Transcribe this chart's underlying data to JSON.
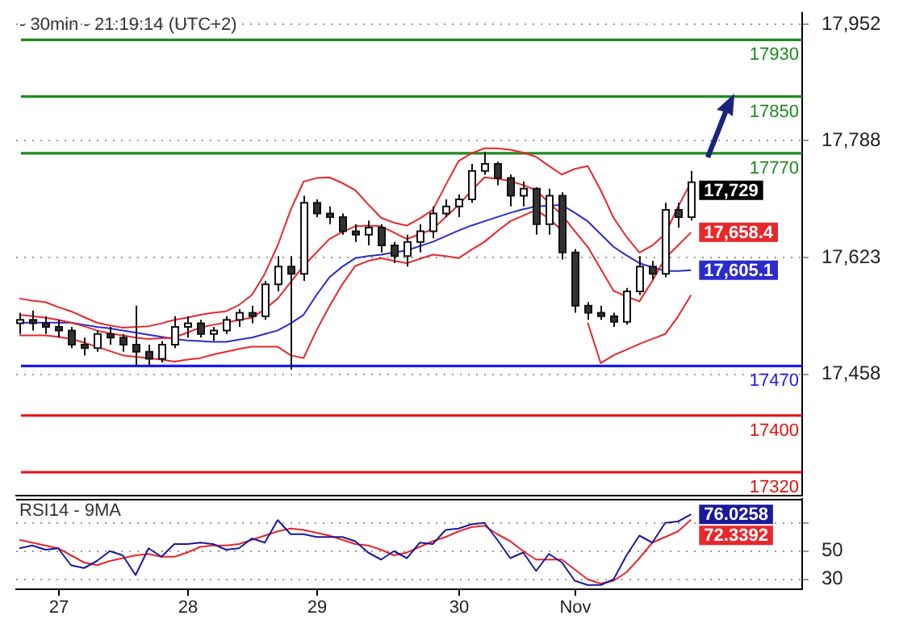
{
  "chart_data": [
    {
      "type": "candlestick",
      "title": "- 30min - 21:19:14 (UTC+2)",
      "ylim": [
        17287,
        17968
      ],
      "yticks": [
        {
          "value": 17458,
          "label": "17,458"
        },
        {
          "value": 17623,
          "label": "17,623"
        },
        {
          "value": 17788,
          "label": "17,788"
        },
        {
          "value": 17952,
          "label": "17,952"
        }
      ],
      "tick_labels": "y",
      "grid": "y",
      "legend": false,
      "marker": "none",
      "line_style": "solid",
      "categories": [
        null,
        null,
        null,
        null,
        null,
        null,
        null,
        null,
        null,
        null,
        null,
        null,
        null,
        null,
        null,
        null,
        null,
        null,
        null,
        null,
        null,
        null,
        null,
        null,
        null,
        null,
        null,
        null,
        null,
        null,
        null,
        null,
        null,
        null,
        null,
        null,
        null,
        null,
        null,
        null,
        null,
        null,
        null,
        null,
        null,
        null,
        null,
        null,
        null,
        null,
        null,
        null,
        null
      ],
      "ohlc": [
        [
          17530,
          17545,
          17515,
          17535
        ],
        [
          17535,
          17548,
          17520,
          17530
        ],
        [
          17530,
          17540,
          17515,
          17525
        ],
        [
          17525,
          17535,
          17510,
          17520
        ],
        [
          17520,
          17525,
          17495,
          17500
        ],
        [
          17500,
          17510,
          17485,
          17495
        ],
        [
          17495,
          17520,
          17490,
          17515
        ],
        [
          17515,
          17525,
          17500,
          17510
        ],
        [
          17510,
          17515,
          17490,
          17500
        ],
        [
          17500,
          17555,
          17470,
          17490
        ],
        [
          17490,
          17500,
          17470,
          17480
        ],
        [
          17480,
          17505,
          17475,
          17500
        ],
        [
          17500,
          17540,
          17495,
          17525
        ],
        [
          17525,
          17540,
          17510,
          17530
        ],
        [
          17530,
          17535,
          17510,
          17515
        ],
        [
          17515,
          17525,
          17505,
          17520
        ],
        [
          17520,
          17540,
          17515,
          17535
        ],
        [
          17535,
          17550,
          17525,
          17545
        ],
        [
          17545,
          17555,
          17530,
          17540
        ],
        [
          17540,
          17590,
          17535,
          17585
        ],
        [
          17585,
          17625,
          17575,
          17610
        ],
        [
          17610,
          17625,
          17465,
          17600
        ],
        [
          17600,
          17710,
          17590,
          17700
        ],
        [
          17700,
          17705,
          17680,
          17685
        ],
        [
          17685,
          17695,
          17670,
          17680
        ],
        [
          17680,
          17685,
          17655,
          17660
        ],
        [
          17660,
          17670,
          17645,
          17655
        ],
        [
          17655,
          17675,
          17640,
          17665
        ],
        [
          17665,
          17670,
          17630,
          17640
        ],
        [
          17640,
          17645,
          17615,
          17625
        ],
        [
          17625,
          17655,
          17610,
          17645
        ],
        [
          17645,
          17670,
          17630,
          17660
        ],
        [
          17660,
          17695,
          17650,
          17685
        ],
        [
          17685,
          17705,
          17680,
          17695
        ],
        [
          17695,
          17712,
          17680,
          17705
        ],
        [
          17705,
          17755,
          17700,
          17745
        ],
        [
          17745,
          17772,
          17740,
          17755
        ],
        [
          17755,
          17758,
          17725,
          17735
        ],
        [
          17735,
          17740,
          17695,
          17710
        ],
        [
          17710,
          17730,
          17695,
          17720
        ],
        [
          17720,
          17722,
          17655,
          17670
        ],
        [
          17670,
          17720,
          17655,
          17710
        ],
        [
          17710,
          17715,
          17620,
          17630
        ],
        [
          17630,
          17635,
          17545,
          17555
        ],
        [
          17555,
          17560,
          17535,
          17545
        ],
        [
          17545,
          17555,
          17535,
          17540
        ],
        [
          17540,
          17545,
          17525,
          17532
        ],
        [
          17532,
          17580,
          17528,
          17575
        ],
        [
          17575,
          17625,
          17570,
          17610
        ],
        [
          17610,
          17618,
          17592,
          17600
        ],
        [
          17600,
          17700,
          17595,
          17690
        ],
        [
          17690,
          17700,
          17665,
          17680
        ],
        [
          17680,
          17745,
          17675,
          17729
        ]
      ],
      "value_labels": [
        null,
        null,
        null,
        null,
        null,
        null,
        null,
        null,
        null,
        null,
        null,
        null,
        null,
        null,
        null,
        null,
        null,
        null,
        null,
        null,
        null,
        null,
        null,
        null,
        null,
        null,
        null,
        null,
        null,
        null,
        null,
        null,
        null,
        null,
        null,
        null,
        null,
        null,
        null,
        null,
        null,
        null,
        null,
        null,
        null,
        null,
        null,
        null,
        null,
        null,
        null,
        null,
        "17,729"
      ],
      "series": [
        {
          "type": "line",
          "color": "#e8272b",
          "values": [
            17565,
            17562,
            17560,
            17553,
            17547,
            17539,
            17531,
            17527,
            17524,
            17525,
            17526,
            17530,
            17535,
            17538,
            17542,
            17545,
            17547,
            17556,
            17570,
            17600,
            17640,
            17690,
            17730,
            17735,
            17736,
            17728,
            17718,
            17698,
            17679,
            17672,
            17668,
            17678,
            17690,
            17725,
            17759,
            17770,
            17777,
            17777,
            17775,
            17771,
            17765,
            17752,
            17740,
            17748,
            17752,
            17718,
            17679,
            17652,
            17630,
            17640,
            17656,
            17695,
            17729
          ]
        },
        {
          "type": "line",
          "color": "#e8272b",
          "values": [
            17542,
            17540,
            17538,
            17535,
            17531,
            17526,
            17520,
            17516,
            17513,
            17510,
            17508,
            17509,
            17510,
            17517,
            17524,
            17528,
            17531,
            17535,
            17538,
            17550,
            17565,
            17588,
            17611,
            17630,
            17649,
            17659,
            17667,
            17668,
            17667,
            17658,
            17649,
            17656,
            17663,
            17680,
            17697,
            17717,
            17736,
            17734,
            17731,
            17725,
            17718,
            17700,
            17683,
            17660,
            17638,
            17607,
            17576,
            17568,
            17561,
            17590,
            17622,
            17640,
            17658.4
          ],
          "value_labels": [
            null,
            null,
            null,
            null,
            null,
            null,
            null,
            null,
            null,
            null,
            null,
            null,
            null,
            null,
            null,
            null,
            null,
            null,
            null,
            null,
            null,
            null,
            null,
            null,
            null,
            null,
            null,
            null,
            null,
            null,
            null,
            null,
            null,
            null,
            null,
            null,
            null,
            null,
            null,
            null,
            null,
            null,
            null,
            null,
            null,
            null,
            null,
            null,
            null,
            null,
            null,
            null,
            "17,658.4"
          ]
        },
        {
          "type": "line",
          "color": "#e8272b",
          "values": [
            17513,
            17513,
            17513,
            17511,
            17508,
            17503,
            17497,
            17491,
            17485,
            17483,
            17481,
            17479,
            17476,
            17479,
            17481,
            17486,
            17490,
            17494,
            17497,
            17497,
            17497,
            17485,
            17481,
            17520,
            17554,
            17585,
            17611,
            17618,
            17622,
            17618,
            17615,
            17621,
            17627,
            17625,
            17622,
            17634,
            17645,
            17660,
            17674,
            17682,
            17690,
            17678,
            17661,
            null,
            17531,
            17474,
            17485,
            17493,
            17501,
            17508,
            17515,
            17540,
            17570
          ]
        },
        {
          "type": "line",
          "color": "#2b2bd0",
          "values": [
            17531,
            17531,
            17531,
            17531,
            17531,
            17528,
            17525,
            17523,
            17520,
            17517,
            17514,
            17511,
            17508,
            17506,
            17505,
            17504,
            17504,
            17507,
            17510,
            17515,
            17520,
            17530,
            17542,
            17570,
            17595,
            17610,
            17622,
            17625,
            17627,
            17630,
            17633,
            17639,
            17645,
            17653,
            17661,
            17668,
            17674,
            17680,
            17686,
            17691,
            17695,
            17696,
            17697,
            17686,
            17674,
            17656,
            17638,
            17626,
            17615,
            17609,
            17604,
            17604,
            17605.1
          ],
          "value_labels": [
            null,
            null,
            null,
            null,
            null,
            null,
            null,
            null,
            null,
            null,
            null,
            null,
            null,
            null,
            null,
            null,
            null,
            null,
            null,
            null,
            null,
            null,
            null,
            null,
            null,
            null,
            null,
            null,
            null,
            null,
            null,
            null,
            null,
            null,
            null,
            null,
            null,
            null,
            null,
            null,
            null,
            null,
            null,
            null,
            null,
            null,
            null,
            null,
            null,
            null,
            null,
            null,
            "17,605.1"
          ]
        }
      ],
      "ref_lines": [
        {
          "axis": "y",
          "value": 17930,
          "label": "17930",
          "color": "#1f8a1f"
        },
        {
          "axis": "y",
          "value": 17850,
          "label": "17850",
          "color": "#1f8a1f"
        },
        {
          "axis": "y",
          "value": 17770,
          "label": "17770",
          "color": "#1f8a1f"
        },
        {
          "axis": "y",
          "value": 17470,
          "label": "17470",
          "color": "#1a1af0"
        },
        {
          "axis": "y",
          "value": 17400,
          "label": "17400",
          "color": "#e81010"
        },
        {
          "axis": "y",
          "value": 17320,
          "label": "17320",
          "color": "#e81010"
        }
      ]
    },
    {
      "type": "line",
      "title": "RSI14 - 9MA",
      "ylim": [
        23,
        87
      ],
      "categories": [
        null,
        null,
        null,
        "27",
        null,
        null,
        null,
        null,
        null,
        null,
        null,
        null,
        null,
        "28",
        null,
        null,
        null,
        null,
        null,
        null,
        null,
        null,
        null,
        "29",
        null,
        null,
        null,
        null,
        null,
        null,
        null,
        null,
        null,
        null,
        "30",
        null,
        null,
        null,
        null,
        null,
        null,
        null,
        null,
        "Nov",
        null,
        null,
        null,
        null,
        null,
        null,
        null,
        null,
        null
      ],
      "yticks": [
        30,
        50,
        {
          "value": 70,
          "label": null
        }
      ],
      "grid": "y",
      "legend": false,
      "marker": "none",
      "line_style": "solid",
      "series": [
        {
          "type": "line",
          "color": "#1a1a9a",
          "values": [
            52,
            54,
            51,
            52,
            40,
            38,
            43,
            50,
            47,
            33,
            52,
            46,
            55,
            55,
            56,
            55,
            51,
            52,
            59,
            56,
            72,
            62,
            62,
            60,
            60,
            60,
            57,
            49,
            44,
            50,
            45,
            56,
            55,
            65,
            66,
            69,
            70,
            58,
            45,
            49,
            36,
            48,
            42,
            29,
            26,
            26,
            30,
            47,
            61,
            56,
            70,
            71,
            76.0258
          ],
          "value_labels": [
            null,
            null,
            null,
            null,
            null,
            null,
            null,
            null,
            null,
            null,
            null,
            null,
            null,
            null,
            null,
            null,
            null,
            null,
            null,
            null,
            null,
            null,
            null,
            null,
            null,
            null,
            null,
            null,
            null,
            null,
            null,
            null,
            null,
            null,
            null,
            null,
            null,
            null,
            null,
            null,
            null,
            null,
            null,
            null,
            null,
            null,
            null,
            null,
            null,
            null,
            null,
            null,
            "76.0258"
          ]
        },
        {
          "type": "line",
          "color": "#e8272b",
          "values": [
            58,
            56,
            54,
            52,
            47,
            42,
            40,
            43,
            45,
            47,
            48,
            46,
            46,
            49,
            53,
            54,
            54,
            55,
            58,
            61,
            64,
            66,
            65,
            63,
            61,
            58,
            55,
            54,
            51,
            47,
            49,
            53,
            57,
            60,
            64,
            67,
            68,
            62,
            57,
            50,
            44,
            44,
            44,
            37,
            30,
            27,
            29,
            35,
            45,
            56,
            60,
            64,
            72.3392
          ],
          "value_labels": [
            null,
            null,
            null,
            null,
            null,
            null,
            null,
            null,
            null,
            null,
            null,
            null,
            null,
            null,
            null,
            null,
            null,
            null,
            null,
            null,
            null,
            null,
            null,
            null,
            null,
            null,
            null,
            null,
            null,
            null,
            null,
            null,
            null,
            null,
            null,
            null,
            null,
            null,
            null,
            null,
            null,
            null,
            null,
            null,
            null,
            null,
            null,
            null,
            null,
            null,
            null,
            null,
            "72.3392"
          ]
        }
      ]
    }
  ]
}
